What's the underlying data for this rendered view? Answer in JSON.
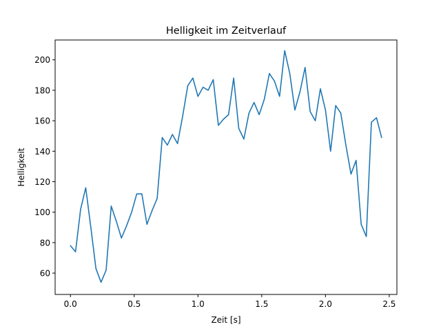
{
  "chart_data": {
    "type": "line",
    "title": "Helligkeit im Zeitverlauf",
    "xlabel": "Zeit [s]",
    "ylabel": "Helligkeit",
    "xlim": [
      -0.12,
      2.56
    ],
    "ylim": [
      46,
      213
    ],
    "xticks": [
      0.0,
      0.5,
      1.0,
      1.5,
      2.0,
      2.5
    ],
    "xtick_labels": [
      "0.0",
      "0.5",
      "1.0",
      "1.5",
      "2.0",
      "2.5"
    ],
    "yticks": [
      60,
      80,
      100,
      120,
      140,
      160,
      180,
      200
    ],
    "ytick_labels": [
      "60",
      "80",
      "100",
      "120",
      "140",
      "160",
      "180",
      "200"
    ],
    "grid": false,
    "legend": "none",
    "color": "#1f77b4",
    "x": [
      0.0,
      0.04,
      0.08,
      0.12,
      0.16,
      0.2,
      0.24,
      0.28,
      0.32,
      0.36,
      0.4,
      0.44,
      0.48,
      0.52,
      0.56,
      0.6,
      0.64,
      0.68,
      0.72,
      0.76,
      0.8,
      0.84,
      0.88,
      0.92,
      0.96,
      1.0,
      1.04,
      1.08,
      1.12,
      1.16,
      1.2,
      1.24,
      1.28,
      1.32,
      1.36,
      1.4,
      1.44,
      1.48,
      1.52,
      1.56,
      1.6,
      1.64,
      1.68,
      1.72,
      1.76,
      1.8,
      1.84,
      1.88,
      1.92,
      1.96,
      2.0,
      2.04,
      2.08,
      2.12,
      2.16,
      2.2,
      2.24,
      2.28,
      2.32,
      2.36,
      2.4,
      2.44
    ],
    "y": [
      78,
      74,
      102,
      116,
      90,
      63,
      54,
      62,
      104,
      94,
      83,
      91,
      100,
      112,
      112,
      92,
      101,
      109,
      149,
      144,
      151,
      145,
      163,
      183,
      188,
      176,
      182,
      180,
      187,
      157,
      161,
      164,
      188,
      155,
      148,
      165,
      172,
      164,
      174,
      191,
      186,
      176,
      206,
      191,
      167,
      179,
      195,
      166,
      160,
      181,
      167,
      140,
      170,
      165,
      144,
      125,
      134,
      92,
      84,
      159,
      162,
      149
    ]
  }
}
